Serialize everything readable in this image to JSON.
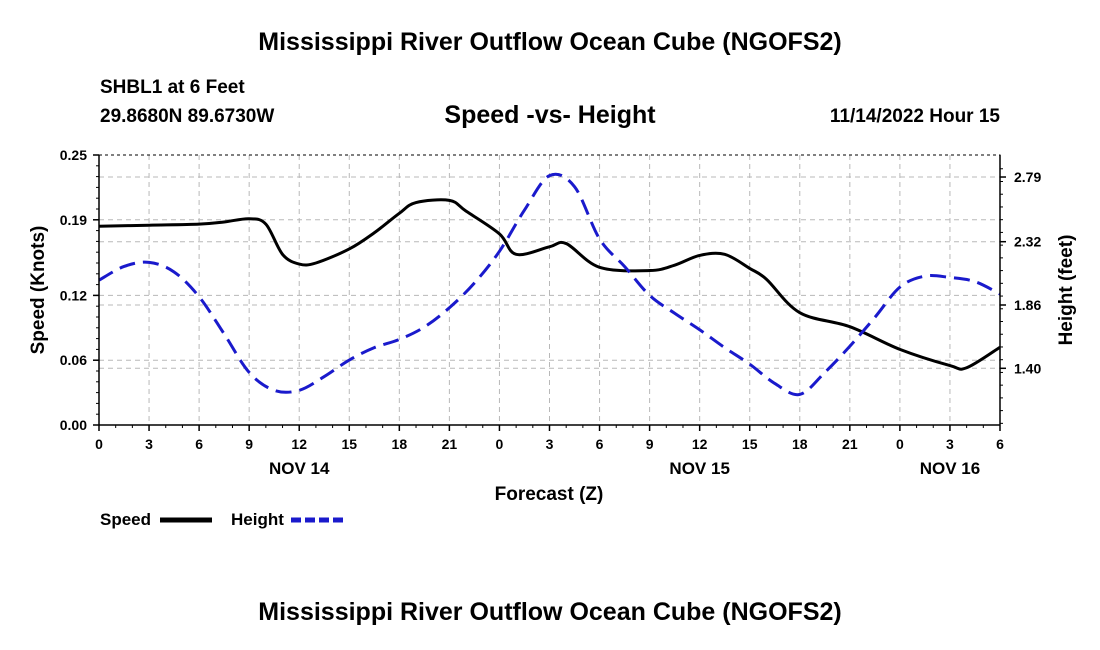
{
  "header": {
    "title": "Mississippi River Outflow Ocean Cube (NGOFS2)",
    "station": "SHBL1 at 6 Feet",
    "coordinates": "29.8680N  89.6730W",
    "datetime": "11/14/2022 Hour 15"
  },
  "footer": {
    "title": "Mississippi River Outflow Ocean Cube (NGOFS2)"
  },
  "chart_data": {
    "type": "line",
    "title": "Speed -vs- Height",
    "xlabel": "Forecast (Z)",
    "ylabel": "Speed (Knots)",
    "y2label": "Height (feet)",
    "x_unit": "hours from 11/14/2022 00Z",
    "xlim": [
      0,
      54
    ],
    "x_ticks": [
      0,
      3,
      6,
      9,
      12,
      15,
      18,
      21,
      24,
      27,
      30,
      33,
      36,
      39,
      42,
      45,
      48,
      51,
      54
    ],
    "x_tick_labels": [
      "0",
      "3",
      "6",
      "9",
      "12",
      "15",
      "18",
      "21",
      "0",
      "3",
      "6",
      "9",
      "12",
      "15",
      "18",
      "21",
      "0",
      "3",
      "6"
    ],
    "date_labels": [
      {
        "x": 12,
        "label": "NOV 14"
      },
      {
        "x": 36,
        "label": "NOV 15"
      },
      {
        "x": 51,
        "label": "NOV 16"
      }
    ],
    "ylim": [
      0,
      0.25
    ],
    "y_ticks": [
      0.0,
      0.06,
      0.12,
      0.19,
      0.25
    ],
    "y_tick_labels": [
      "0.00",
      "0.06",
      "0.12",
      "0.19",
      "0.25"
    ],
    "y2lim": [
      0.988,
      2.95
    ],
    "y2_ticks": [
      1.4,
      1.86,
      2.32,
      2.79
    ],
    "y2_tick_labels": [
      "1.40",
      "1.86",
      "2.32",
      "2.79"
    ],
    "grid": true,
    "legend": [
      {
        "label": "Speed",
        "color": "#000000",
        "style": "solid"
      },
      {
        "label": "Height",
        "color": "#1a1acc",
        "style": "dashed"
      }
    ],
    "series": [
      {
        "name": "Speed",
        "axis": "left",
        "color": "#000000",
        "style": "solid",
        "x": [
          0,
          3,
          6,
          7.5,
          9,
          10,
          11,
          12,
          13,
          15,
          16.5,
          18,
          19,
          21,
          22,
          24,
          25,
          27,
          28,
          30,
          33,
          34.5,
          36,
          37.5,
          39,
          40,
          42,
          45,
          48,
          51,
          52,
          54
        ],
        "values": [
          0.184,
          0.185,
          0.186,
          0.188,
          0.191,
          0.186,
          0.158,
          0.149,
          0.15,
          0.163,
          0.178,
          0.196,
          0.206,
          0.208,
          0.198,
          0.177,
          0.158,
          0.165,
          0.168,
          0.146,
          0.143,
          0.148,
          0.157,
          0.158,
          0.145,
          0.135,
          0.104,
          0.091,
          0.07,
          0.055,
          0.053,
          0.072
        ]
      },
      {
        "name": "Height",
        "axis": "right",
        "color": "#1a1acc",
        "style": "dashed",
        "x": [
          0,
          1.5,
          3,
          4.5,
          6,
          7.5,
          9,
          10.5,
          12,
          13.5,
          15,
          16.5,
          18,
          19.5,
          21,
          22.5,
          24,
          25.5,
          27,
          28.5,
          30,
          31.5,
          33,
          34.5,
          36,
          37.5,
          39,
          40.5,
          42,
          43.5,
          45,
          46.5,
          48,
          49.5,
          51,
          52.5,
          54
        ],
        "values": [
          2.04,
          2.14,
          2.17,
          2.1,
          1.92,
          1.65,
          1.37,
          1.24,
          1.24,
          1.34,
          1.46,
          1.55,
          1.61,
          1.7,
          1.84,
          2.02,
          2.25,
          2.55,
          2.8,
          2.72,
          2.34,
          2.14,
          1.93,
          1.8,
          1.68,
          1.55,
          1.43,
          1.29,
          1.21,
          1.37,
          1.56,
          1.77,
          1.99,
          2.07,
          2.06,
          2.03,
          1.94
        ]
      }
    ]
  }
}
